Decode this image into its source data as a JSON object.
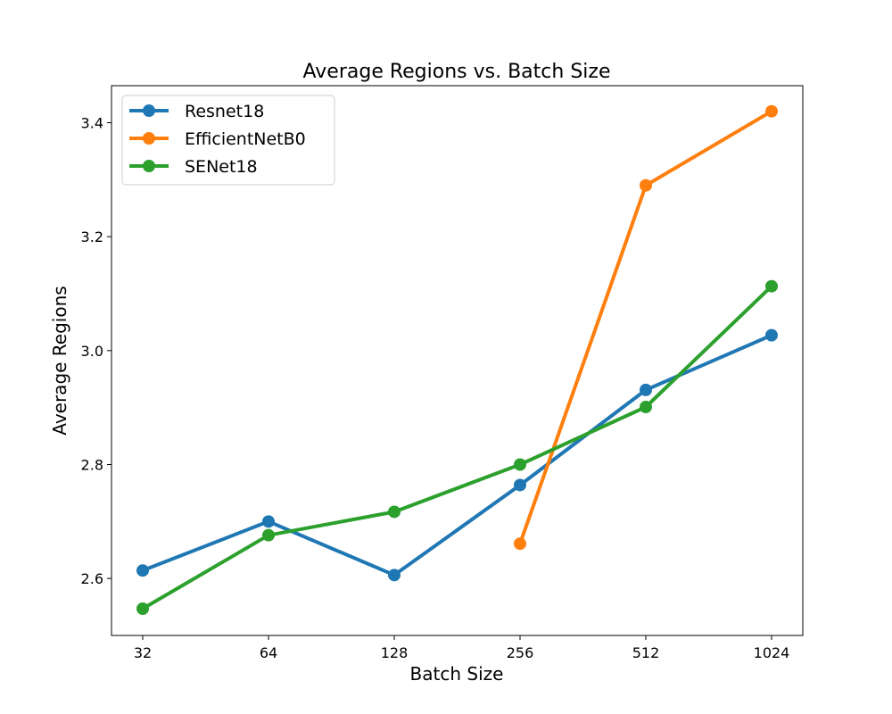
{
  "chart_data": {
    "type": "line",
    "title": "Average Regions vs. Batch Size",
    "xlabel": "Batch Size",
    "ylabel": "Average Regions",
    "categories": [
      "32",
      "64",
      "128",
      "256",
      "512",
      "1024"
    ],
    "y_ticks": [
      "2.6",
      "2.8",
      "3.0",
      "3.2",
      "3.4"
    ],
    "ylim": [
      2.5,
      3.465
    ],
    "x_scale": "log2",
    "grid": false,
    "legend_position": "top-left",
    "series": [
      {
        "name": "Resnet18",
        "color": "#1f77b4",
        "values": [
          2.614,
          2.7,
          2.606,
          2.764,
          2.931,
          3.027
        ]
      },
      {
        "name": "EfficientNetB0",
        "color": "#ff7f0e",
        "values": [
          null,
          null,
          null,
          2.661,
          3.29,
          3.42
        ]
      },
      {
        "name": "SENet18",
        "color": "#2ca02c",
        "values": [
          2.547,
          2.676,
          2.717,
          2.8,
          2.901,
          3.113
        ]
      }
    ]
  }
}
